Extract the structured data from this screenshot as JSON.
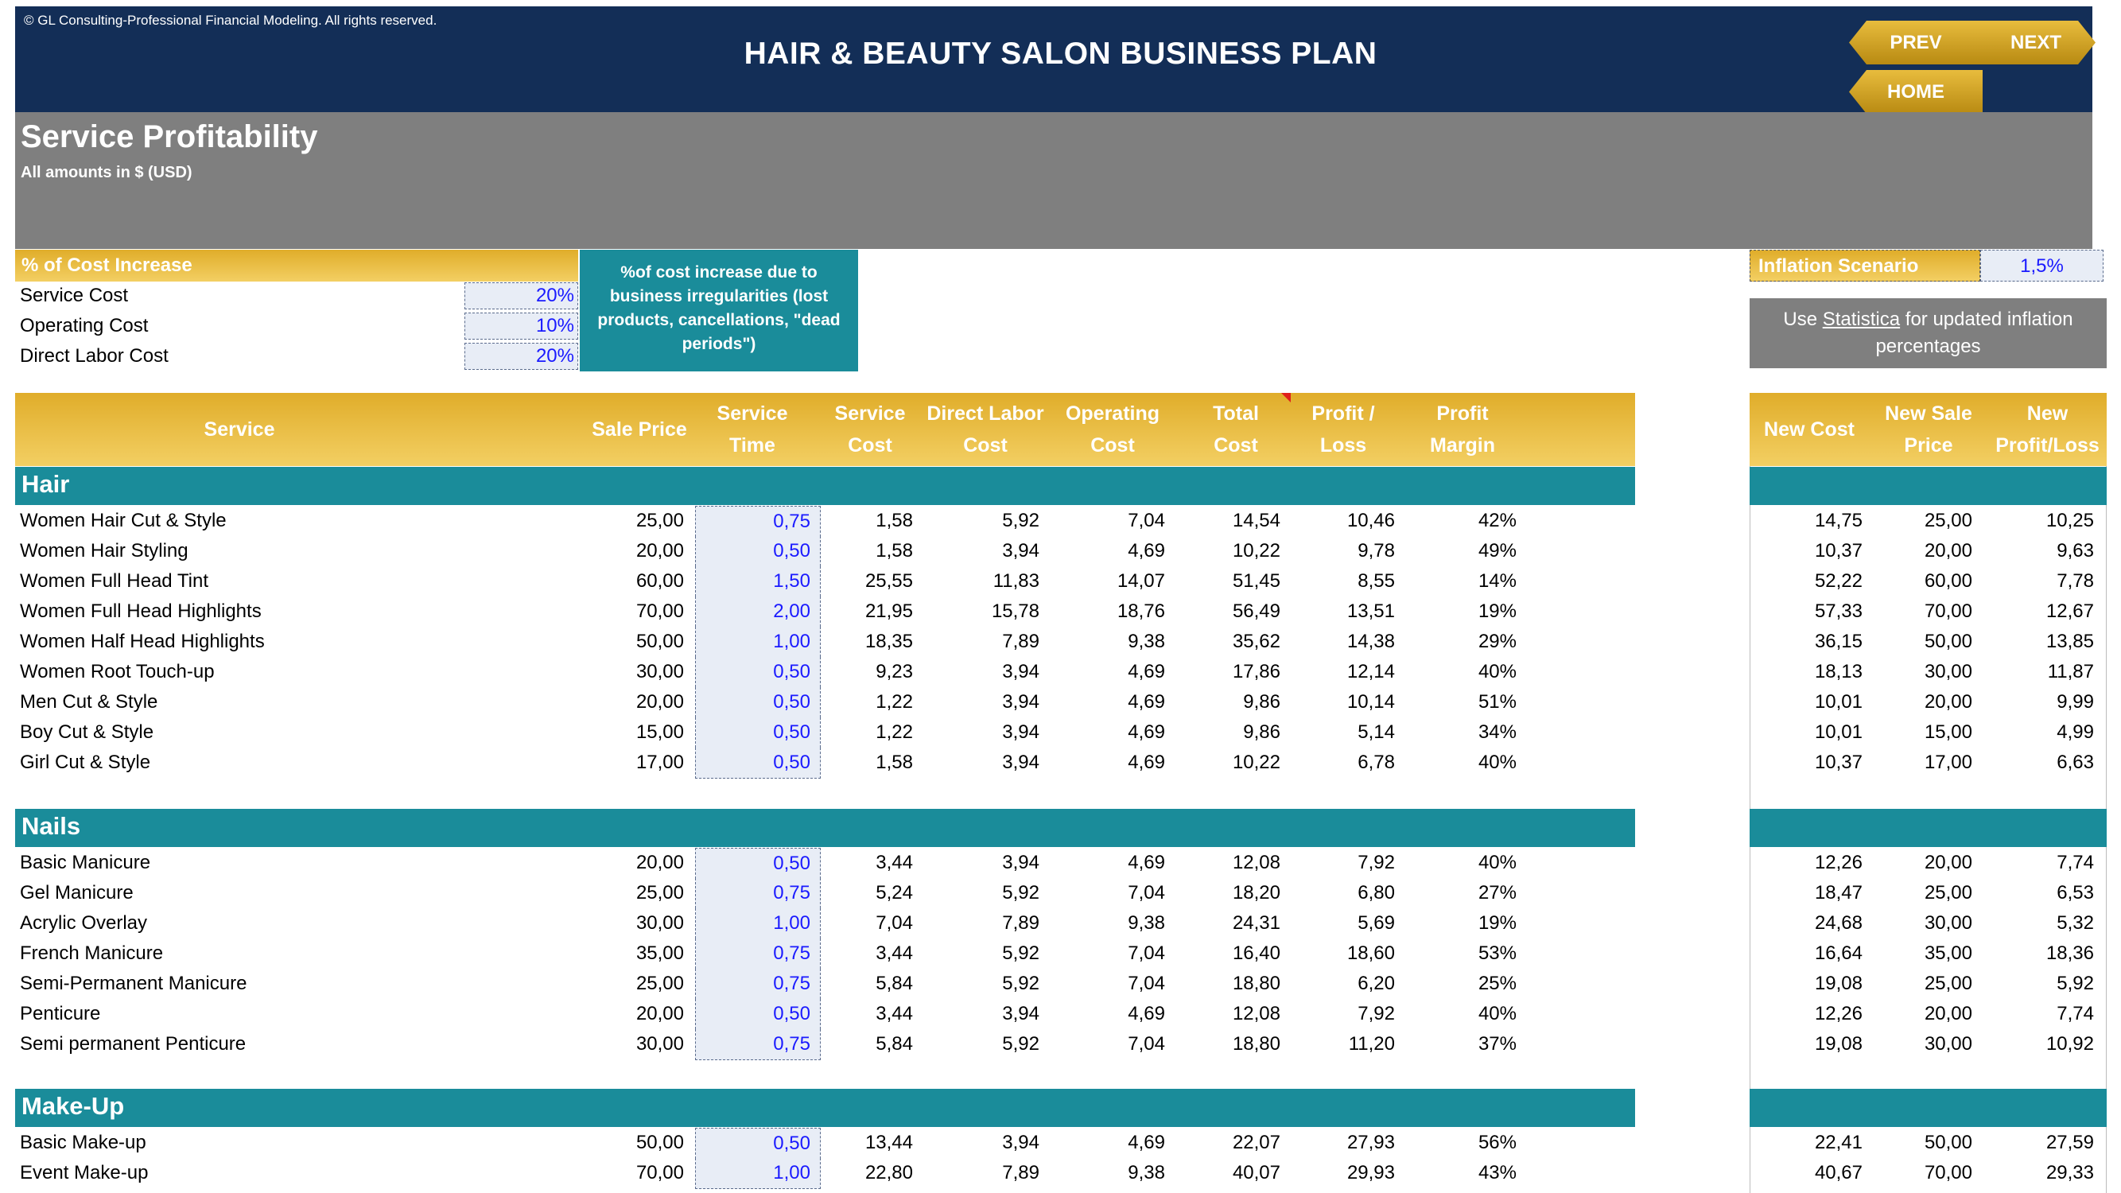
{
  "header": {
    "copyright": "© GL Consulting-Professional Financial Modeling. All rights reserved.",
    "title": "HAIR & BEAUTY SALON BUSINESS PLAN",
    "nav": {
      "prev": "PREV",
      "next": "NEXT",
      "home": "HOME"
    },
    "nav_color": "#d4a52c"
  },
  "section": {
    "title": "Service Profitability",
    "subtitle": "All amounts in $ (USD)"
  },
  "cost_increase": {
    "header": "% of Cost Increase",
    "items": [
      {
        "label": "Service Cost",
        "value": "20%"
      },
      {
        "label": "Operating Cost",
        "value": "10%"
      },
      {
        "label": "Direct Labor Cost",
        "value": "20%"
      }
    ],
    "note": "%of cost increase due to business irregularities (lost products, cancellations, \"dead periods\")"
  },
  "inflation": {
    "label": "Inflation Scenario",
    "value": "1,5%",
    "note_pre": "Use ",
    "note_link": "Statistica",
    "note_post": " for updated inflation percentages"
  },
  "columns": {
    "service": "Service",
    "sale_price": "Sale Price",
    "service_time": "Service Time",
    "service_cost": "Service Cost",
    "direct_labor": "Direct Labor Cost",
    "operating_cost": "Operating Cost",
    "total_cost": "Total Cost",
    "profit_loss": "Profit / Loss",
    "profit_margin": "Profit Margin",
    "new_cost": "New Cost",
    "new_sale_price": "New Sale Price",
    "new_profit": "New Profit/Loss"
  },
  "colors": {
    "navy": "#132e57",
    "gold": "#e0ad2a",
    "teal": "#1a8c9a",
    "gray": "#7f7f7f",
    "input_blue": "#1a1aff"
  },
  "categories": [
    {
      "name": "Hair",
      "rows": [
        {
          "service": "Women Hair Cut & Style",
          "price": "25,00",
          "time": "0,75",
          "scost": "1,58",
          "labor": "5,92",
          "opcost": "7,04",
          "total": "14,54",
          "profit": "10,46",
          "margin": "42%",
          "newcost": "14,75",
          "newprice": "25,00",
          "newprofit": "10,25"
        },
        {
          "service": "Women Hair Styling",
          "price": "20,00",
          "time": "0,50",
          "scost": "1,58",
          "labor": "3,94",
          "opcost": "4,69",
          "total": "10,22",
          "profit": "9,78",
          "margin": "49%",
          "newcost": "10,37",
          "newprice": "20,00",
          "newprofit": "9,63"
        },
        {
          "service": "Women Full Head Tint",
          "price": "60,00",
          "time": "1,50",
          "scost": "25,55",
          "labor": "11,83",
          "opcost": "14,07",
          "total": "51,45",
          "profit": "8,55",
          "margin": "14%",
          "newcost": "52,22",
          "newprice": "60,00",
          "newprofit": "7,78"
        },
        {
          "service": "Women Full Head Highlights",
          "price": "70,00",
          "time": "2,00",
          "scost": "21,95",
          "labor": "15,78",
          "opcost": "18,76",
          "total": "56,49",
          "profit": "13,51",
          "margin": "19%",
          "newcost": "57,33",
          "newprice": "70,00",
          "newprofit": "12,67"
        },
        {
          "service": "Women Half Head Highlights",
          "price": "50,00",
          "time": "1,00",
          "scost": "18,35",
          "labor": "7,89",
          "opcost": "9,38",
          "total": "35,62",
          "profit": "14,38",
          "margin": "29%",
          "newcost": "36,15",
          "newprice": "50,00",
          "newprofit": "13,85"
        },
        {
          "service": "Women Root Touch-up",
          "price": "30,00",
          "time": "0,50",
          "scost": "9,23",
          "labor": "3,94",
          "opcost": "4,69",
          "total": "17,86",
          "profit": "12,14",
          "margin": "40%",
          "newcost": "18,13",
          "newprice": "30,00",
          "newprofit": "11,87"
        },
        {
          "service": "Men Cut & Style",
          "price": "20,00",
          "time": "0,50",
          "scost": "1,22",
          "labor": "3,94",
          "opcost": "4,69",
          "total": "9,86",
          "profit": "10,14",
          "margin": "51%",
          "newcost": "10,01",
          "newprice": "20,00",
          "newprofit": "9,99"
        },
        {
          "service": "Boy Cut & Style",
          "price": "15,00",
          "time": "0,50",
          "scost": "1,22",
          "labor": "3,94",
          "opcost": "4,69",
          "total": "9,86",
          "profit": "5,14",
          "margin": "34%",
          "newcost": "10,01",
          "newprice": "15,00",
          "newprofit": "4,99"
        },
        {
          "service": "Girl Cut & Style",
          "price": "17,00",
          "time": "0,50",
          "scost": "1,58",
          "labor": "3,94",
          "opcost": "4,69",
          "total": "10,22",
          "profit": "6,78",
          "margin": "40%",
          "newcost": "10,37",
          "newprice": "17,00",
          "newprofit": "6,63"
        }
      ]
    },
    {
      "name": "Nails",
      "rows": [
        {
          "service": "Basic Manicure",
          "price": "20,00",
          "time": "0,50",
          "scost": "3,44",
          "labor": "3,94",
          "opcost": "4,69",
          "total": "12,08",
          "profit": "7,92",
          "margin": "40%",
          "newcost": "12,26",
          "newprice": "20,00",
          "newprofit": "7,74"
        },
        {
          "service": "Gel Manicure",
          "price": "25,00",
          "time": "0,75",
          "scost": "5,24",
          "labor": "5,92",
          "opcost": "7,04",
          "total": "18,20",
          "profit": "6,80",
          "margin": "27%",
          "newcost": "18,47",
          "newprice": "25,00",
          "newprofit": "6,53"
        },
        {
          "service": "Acrylic Overlay",
          "price": "30,00",
          "time": "1,00",
          "scost": "7,04",
          "labor": "7,89",
          "opcost": "9,38",
          "total": "24,31",
          "profit": "5,69",
          "margin": "19%",
          "newcost": "24,68",
          "newprice": "30,00",
          "newprofit": "5,32"
        },
        {
          "service": "French Manicure",
          "price": "35,00",
          "time": "0,75",
          "scost": "3,44",
          "labor": "5,92",
          "opcost": "7,04",
          "total": "16,40",
          "profit": "18,60",
          "margin": "53%",
          "newcost": "16,64",
          "newprice": "35,00",
          "newprofit": "18,36"
        },
        {
          "service": "Semi-Permanent Manicure",
          "price": "25,00",
          "time": "0,75",
          "scost": "5,84",
          "labor": "5,92",
          "opcost": "7,04",
          "total": "18,80",
          "profit": "6,20",
          "margin": "25%",
          "newcost": "19,08",
          "newprice": "25,00",
          "newprofit": "5,92"
        },
        {
          "service": "Penticure",
          "price": "20,00",
          "time": "0,50",
          "scost": "3,44",
          "labor": "3,94",
          "opcost": "4,69",
          "total": "12,08",
          "profit": "7,92",
          "margin": "40%",
          "newcost": "12,26",
          "newprice": "20,00",
          "newprofit": "7,74"
        },
        {
          "service": "Semi permanent Penticure",
          "price": "30,00",
          "time": "0,75",
          "scost": "5,84",
          "labor": "5,92",
          "opcost": "7,04",
          "total": "18,80",
          "profit": "11,20",
          "margin": "37%",
          "newcost": "19,08",
          "newprice": "30,00",
          "newprofit": "10,92"
        }
      ]
    },
    {
      "name": "Make-Up",
      "rows": [
        {
          "service": "Basic Make-up",
          "price": "50,00",
          "time": "0,50",
          "scost": "13,44",
          "labor": "3,94",
          "opcost": "4,69",
          "total": "22,07",
          "profit": "27,93",
          "margin": "56%",
          "newcost": "22,41",
          "newprice": "50,00",
          "newprofit": "27,59"
        },
        {
          "service": "Event Make-up",
          "price": "70,00",
          "time": "1,00",
          "scost": "22,80",
          "labor": "7,89",
          "opcost": "9,38",
          "total": "40,07",
          "profit": "29,93",
          "margin": "43%",
          "newcost": "40,67",
          "newprice": "70,00",
          "newprofit": "29,33"
        }
      ]
    }
  ]
}
